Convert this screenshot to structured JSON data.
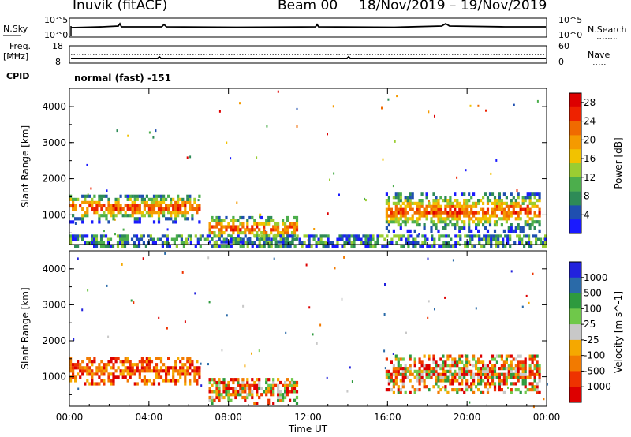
{
  "header": {
    "station": "Inuvik (fitACF)",
    "beam": "Beam 00",
    "date_range": "18/Nov/2019 – 19/Nov/2019"
  },
  "noise_panel": {
    "left_label": "N.Sky",
    "left_tick_top": "10^5",
    "left_tick_bottom": "10^0",
    "right_label": "N.Search",
    "right_tick_top": "10^5",
    "right_tick_bottom": "10^0"
  },
  "freq_panel": {
    "left_label_1": "Freq.",
    "left_label_2": "[MHz]",
    "left_tick_top": "18",
    "left_tick_bottom": "8",
    "right_label": "Nave",
    "right_tick_top": "60",
    "right_tick_bottom": "0"
  },
  "cpid": {
    "label": "CPID",
    "value": "normal (fast) -151"
  },
  "colors": {
    "power_scale": [
      "#1a1aff",
      "#1f4fb0",
      "#2e8b57",
      "#4cae4c",
      "#9acd32",
      "#f2c200",
      "#f59a00",
      "#f06a00",
      "#ee2200",
      "#dd0000"
    ],
    "velocity_scale": [
      "#dd0000",
      "#ee3300",
      "#f27a00",
      "#f5a800",
      "#c8c8c8",
      "#6fc84a",
      "#2e9a3e",
      "#2a6aa8",
      "#2222dd"
    ]
  },
  "chart_data": [
    {
      "type": "heatmap",
      "title": "",
      "xlabel": "Time UT",
      "ylabel": "Slant Range [km]",
      "x_ticks": [
        "00:00",
        "04:00",
        "08:00",
        "12:00",
        "16:00",
        "20:00",
        "00:00"
      ],
      "y_ticks": [
        "1000",
        "2000",
        "3000",
        "4000"
      ],
      "xlim": [
        "00:00",
        "24:00"
      ],
      "ylim": [
        180,
        4500
      ],
      "colorbar": {
        "label": "Power [dB]",
        "ticks": [
          "4",
          "8",
          "12",
          "16",
          "20",
          "24",
          "28"
        ],
        "range": [
          0,
          30
        ]
      },
      "regions": [
        {
          "t0": 0.0,
          "t1": 6.6,
          "r0": 850,
          "r1": 1650,
          "level": "high"
        },
        {
          "t0": 7.0,
          "t1": 11.5,
          "r0": 300,
          "r1": 1050,
          "level": "high"
        },
        {
          "t0": 15.9,
          "t1": 23.7,
          "r0": 600,
          "r1": 1700,
          "level": "high"
        },
        {
          "t0": 0.0,
          "t1": 24.0,
          "r0": 180,
          "r1": 550,
          "level": "low"
        }
      ]
    },
    {
      "type": "heatmap",
      "title": "",
      "xlabel": "Time UT",
      "ylabel": "Slant Range [km]",
      "x_ticks": [
        "00:00",
        "04:00",
        "08:00",
        "12:00",
        "16:00",
        "20:00",
        "00:00"
      ],
      "y_ticks": [
        "1000",
        "2000",
        "3000",
        "4000"
      ],
      "xlim": [
        "00:00",
        "24:00"
      ],
      "ylim": [
        180,
        4500
      ],
      "colorbar": {
        "label": "Velocity [m s^-1]",
        "ticks": [
          "1000",
          "500",
          "100",
          "25",
          "-25",
          "-100",
          "-500",
          "-1000"
        ],
        "range": [
          -1000,
          1000
        ]
      },
      "regions": [
        {
          "t0": 0.0,
          "t1": 6.6,
          "r0": 850,
          "r1": 1650,
          "level": "negative"
        },
        {
          "t0": 7.0,
          "t1": 11.5,
          "r0": 300,
          "r1": 1050,
          "level": "mixed"
        },
        {
          "t0": 15.9,
          "t1": 23.7,
          "r0": 600,
          "r1": 1700,
          "level": "mixed"
        }
      ]
    }
  ]
}
